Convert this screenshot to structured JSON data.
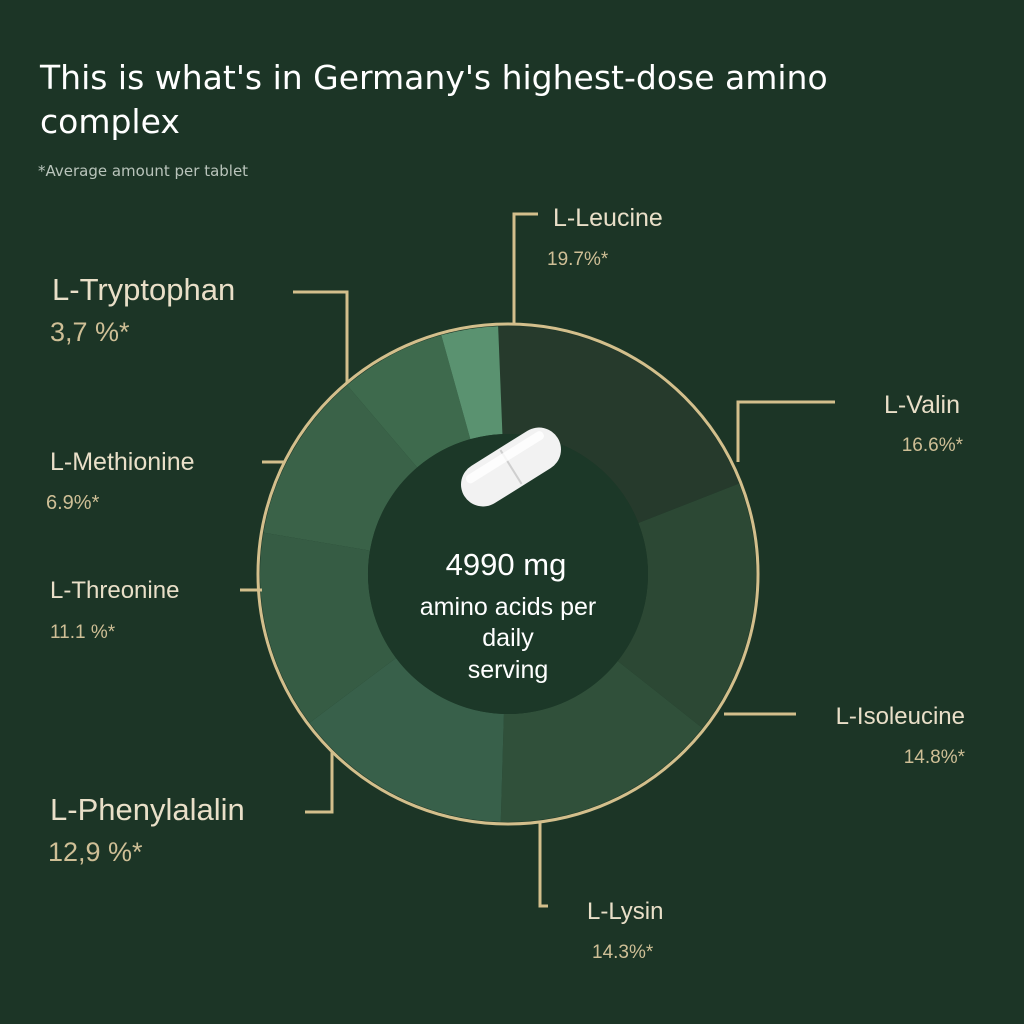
{
  "header": {
    "title": "This is what's in Germany's highest-dose amino complex",
    "footnote": "*Average amount per tablet"
  },
  "center": {
    "amount": "4990 mg",
    "line1": "amino acids per",
    "line2": "daily",
    "line3": "serving"
  },
  "colors": {
    "background": "#1c3526",
    "ring": "#d3bf8c",
    "leader": "#d3bf8c",
    "label_name": "#e9dfc8",
    "label_value": "#cfbf96",
    "center_disc": "#1c3828"
  },
  "icons": {
    "center": "pill-icon"
  },
  "chart_data": {
    "type": "pie",
    "donut": true,
    "title": "This is what's in Germany's highest-dose amino complex",
    "unit": "%",
    "order": "clockwise from top",
    "slices": [
      {
        "label": "L-Leucine",
        "value": 19.7,
        "value_text": "19.7%*",
        "color": "#263a2c"
      },
      {
        "label": "L-Valin",
        "value": 16.6,
        "value_text": "16.6%*",
        "color": "#2c4834"
      },
      {
        "label": "L-Isoleucine",
        "value": 14.8,
        "value_text": "14.8%*",
        "color": "#30503a"
      },
      {
        "label": "L-Lysin",
        "value": 14.3,
        "value_text": "14.3%*",
        "color": "#38604a"
      },
      {
        "label": "L-Phenylalalin",
        "value": 12.9,
        "value_text": "12,9 %*",
        "color": "#365c44"
      },
      {
        "label": "L-Threonine",
        "value": 11.1,
        "value_text": "11.1 %*",
        "color": "#3a6248"
      },
      {
        "label": "L-Methionine",
        "value": 6.9,
        "value_text": "6.9%*",
        "color": "#3e6a4d"
      },
      {
        "label": "L-Tryptophan",
        "value": 3.7,
        "value_text": "3,7 %*",
        "color": "#5a9270"
      }
    ]
  }
}
